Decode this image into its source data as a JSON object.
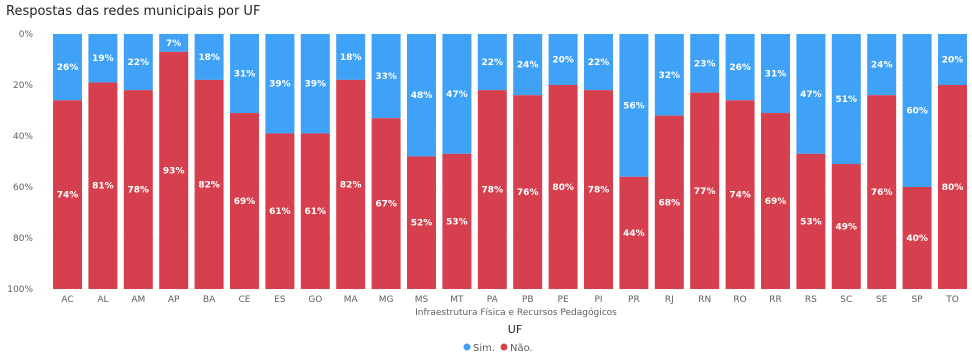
{
  "title": "Respostas das redes municipais por UF",
  "chart_data": {
    "type": "bar",
    "stacked": "100%",
    "categories": [
      "AC",
      "AL",
      "AM",
      "AP",
      "BA",
      "CE",
      "ES",
      "GO",
      "MA",
      "MG",
      "MS",
      "MT",
      "PA",
      "PB",
      "PE",
      "PI",
      "PR",
      "RJ",
      "RN",
      "RO",
      "RR",
      "RS",
      "SC",
      "SE",
      "SP",
      "TO"
    ],
    "series": [
      {
        "name": "Sim.",
        "color": "#3fa2f7",
        "values": [
          26,
          19,
          22,
          7,
          18,
          31,
          39,
          39,
          18,
          33,
          48,
          47,
          22,
          24,
          20,
          22,
          56,
          32,
          23,
          26,
          31,
          47,
          51,
          24,
          60,
          20
        ]
      },
      {
        "name": "Não.",
        "color": "#d6404e",
        "values": [
          74,
          81,
          78,
          93,
          82,
          69,
          61,
          61,
          82,
          67,
          52,
          53,
          78,
          76,
          80,
          78,
          44,
          68,
          77,
          74,
          69,
          53,
          49,
          76,
          40,
          80
        ]
      }
    ],
    "y_ticks": [
      "0%",
      "20%",
      "40%",
      "60%",
      "80%",
      "100%"
    ],
    "y_axis": "inverted",
    "xlabel": "Infraestrutura Física e Recursos Pedagógicos",
    "legend_title": "UF",
    "legend_position": "bottom-center"
  }
}
